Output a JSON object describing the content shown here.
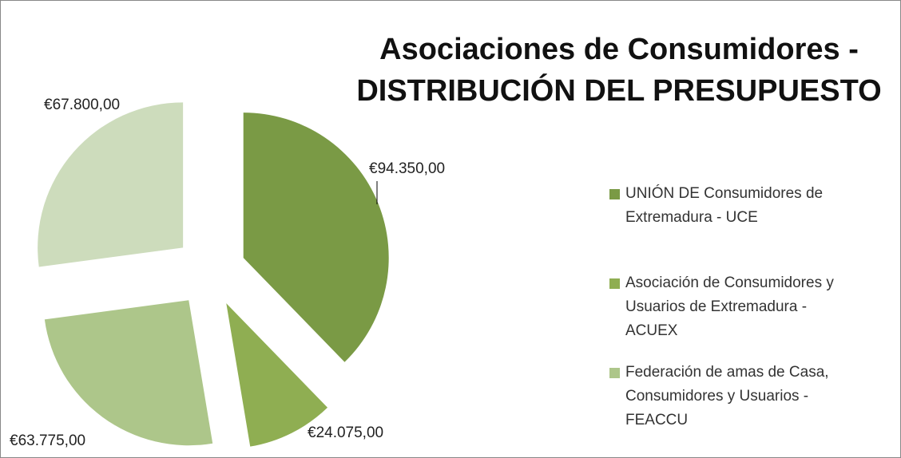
{
  "chart_data": {
    "type": "pie",
    "title": "Asociaciones de Consumidores - DISTRIBUCIÓN DEL PRESUPUESTO",
    "categories": [
      "UNIÓN DE Consumidores de Extremadura - UCE",
      "Asociación de Consumidores y Usuarios de Extremadura - ACUEX",
      "Federación de amas de Casa, Consumidores y Usuarios - FEACCU",
      null
    ],
    "values": [
      94350,
      24075,
      63775,
      67800
    ],
    "value_labels": [
      "€94.350,00",
      "€24.075,00",
      "€63.775,00",
      "€67.800,00"
    ],
    "colors": [
      "#7a9a45",
      "#8fae52",
      "#adc68a",
      "#cddcbc"
    ],
    "legend": "right"
  }
}
